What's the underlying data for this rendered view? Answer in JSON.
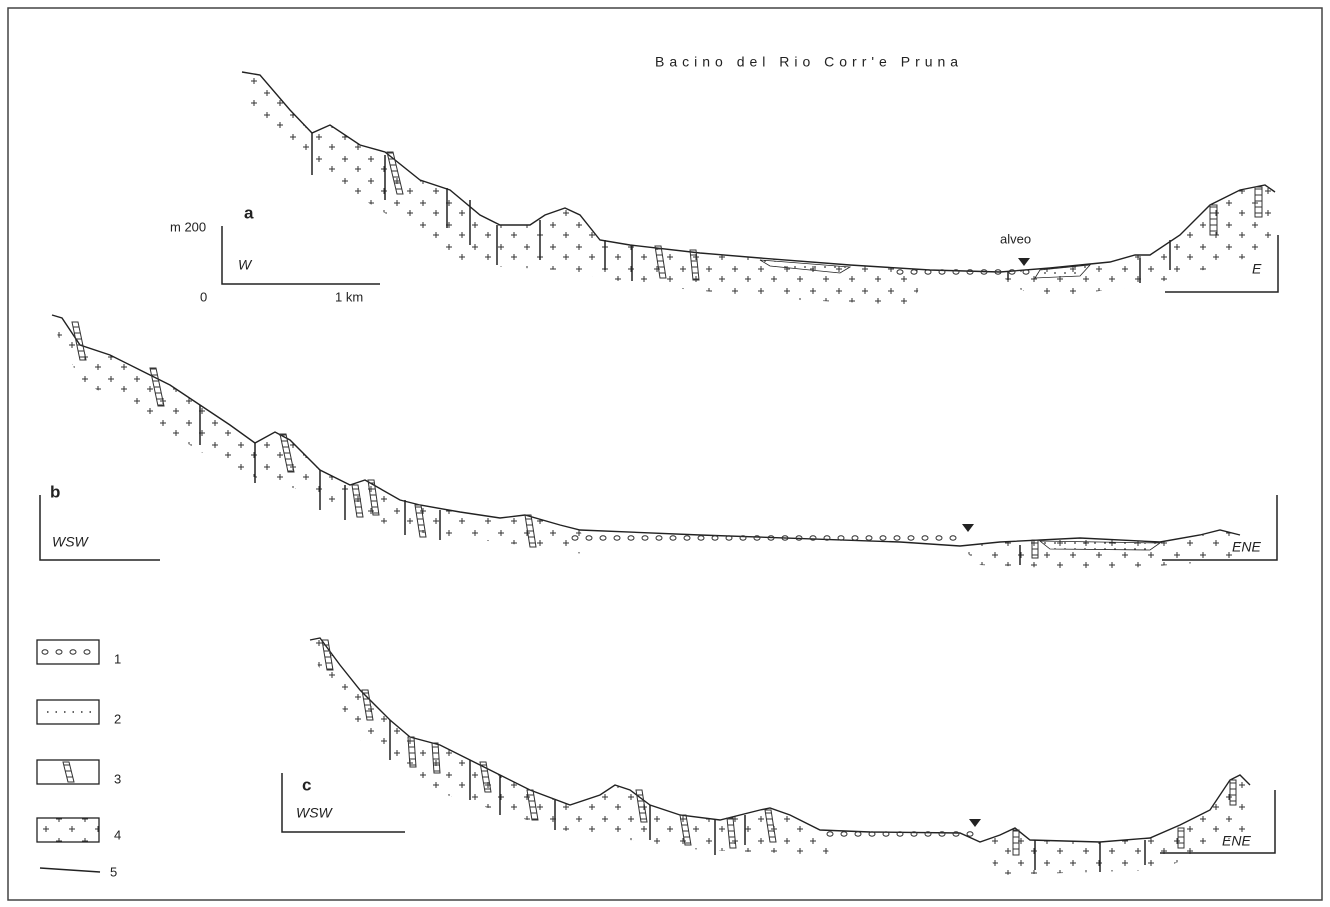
{
  "title": "Bacino del Rio Corr'e Pruna",
  "scale": {
    "vertical_label": "m 200",
    "origin": "0",
    "horizontal_label": "1 km"
  },
  "sections": [
    {
      "label": "a",
      "left": "W",
      "right": "E",
      "annotation": "alveo"
    },
    {
      "label": "b",
      "left": "WSW",
      "right": "ENE"
    },
    {
      "label": "c",
      "left": "WSW",
      "right": "ENE"
    }
  ],
  "legend": {
    "items": [
      "1",
      "2",
      "3",
      "4",
      "5"
    ]
  }
}
